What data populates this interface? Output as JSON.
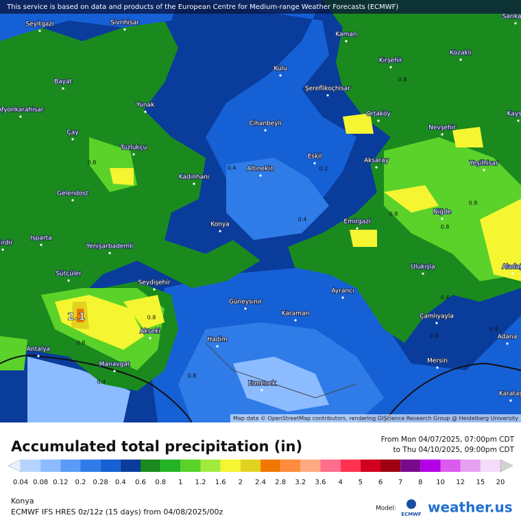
{
  "header": {
    "notice": "This service is based on data and products of the European Centre for Medium-range Weather Forecasts (ECMWF)"
  },
  "map": {
    "cities": [
      "Seyitgazi",
      "Sivrihisar",
      "Kaman",
      "Sarıkaya",
      "Kozaklı",
      "Kulu",
      "Kırşehir",
      "Bayat",
      "Şereflikoçhisar",
      "Afyonkarahisar",
      "Yunak",
      "Ortaköy",
      "Cihanbeyli",
      "Nevşehir",
      "Kayseri",
      "Çay",
      "Tuzlukçu",
      "Eskil",
      "Aksaray",
      "Yeşilhisar",
      "Altınekin",
      "Kadınhanı",
      "Gelendost",
      "Niğde",
      "Emirgazi",
      "Konya",
      "Isparta",
      "Eğirdir",
      "Yenişarbademli",
      "Ulukışla",
      "Aladağ",
      "Sütçüler",
      "Seydişehir",
      "Ayrancı",
      "Güneysınır",
      "Karaman",
      "Çamlıyayla",
      "Akseki",
      "Adana",
      "Hadim",
      "Antalya",
      "Mersin",
      "Manavgat",
      "Ermenek",
      "Karataş"
    ],
    "contour_labels": [
      "0.8",
      "0.8",
      "0.4",
      "0.4",
      "0.8",
      "0.8",
      "0.4",
      "0.8",
      "0.8",
      "0.8",
      "0.4",
      "0.8",
      "0.2",
      "0.4",
      "0.8"
    ],
    "max_label": "2.1",
    "attribution": "Map data © OpenStreetMap contributors, rendering GIScience Research Group @ Heidelberg University"
  },
  "legend": {
    "title": "Accumulated total precipitation (in)",
    "period_from": "From Mon 04/07/2025, 07:00pm CDT",
    "period_to": "to Thu 04/10/2025, 09:00pm CDT",
    "levels": [
      "0.04",
      "0.08",
      "0.12",
      "0.2",
      "0.28",
      "0.4",
      "0.6",
      "0.8",
      "1",
      "1.2",
      "1.6",
      "2",
      "2.4",
      "2.8",
      "3.2",
      "3.6",
      "4",
      "5",
      "6",
      "7",
      "8",
      "10",
      "12",
      "15",
      "20"
    ],
    "colors": [
      "#e6f0ff",
      "#b4d4ff",
      "#8cbcff",
      "#5a9cf5",
      "#2f7ce8",
      "#1660d6",
      "#0a3c9c",
      "#1a8a1e",
      "#22b422",
      "#5ad22a",
      "#a0ec3c",
      "#f5f532",
      "#e0d21e",
      "#f07800",
      "#ff8c3c",
      "#ffaa82",
      "#ff6e8c",
      "#ff3250",
      "#d2001e",
      "#a00014",
      "#7a0a8c",
      "#b400e6",
      "#dc5af0",
      "#e6a0f0",
      "#f5dcfa",
      "#d2d2d2"
    ]
  },
  "footer": {
    "location": "Konya",
    "model_run": "ECMWF IFS HRES 0z/12z (15 days) from  04/08/2025/00z",
    "model_label": "Model:",
    "ecmwf": "ECMWF",
    "brand": "weather.us"
  }
}
